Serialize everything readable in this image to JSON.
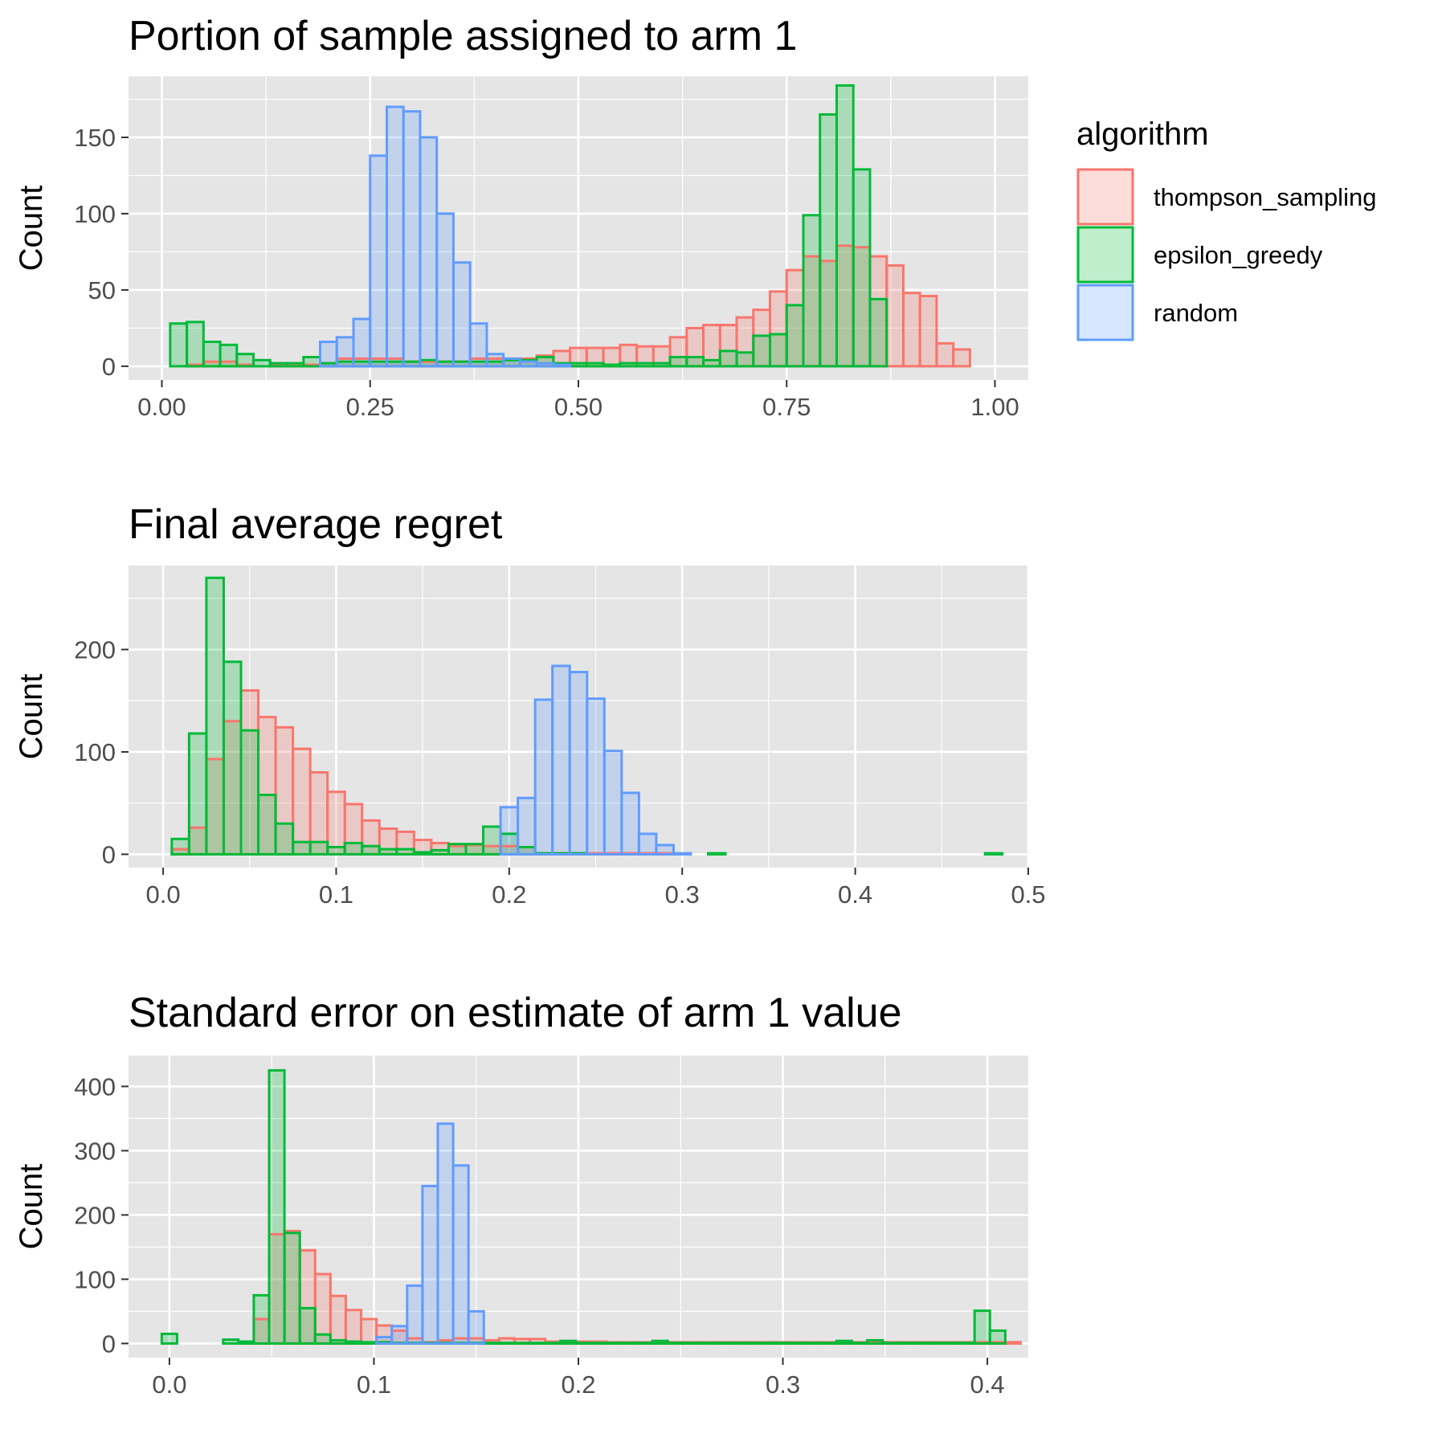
{
  "legend": {
    "title": "algorithm",
    "placement": "right",
    "items": [
      {
        "key": "thompson_sampling",
        "label": "thompson_sampling",
        "color": "#F8766D"
      },
      {
        "key": "epsilon_greedy",
        "label": "epsilon_greedy",
        "color": "#00BA38"
      },
      {
        "key": "random",
        "label": "random",
        "color": "#619CFF"
      }
    ]
  },
  "colors": {
    "panel_background": "#e5e5e5",
    "gridline": "#ffffff",
    "tick_text": "#4d4d4d"
  },
  "chart_data": [
    {
      "type": "bar",
      "subtype": "histogram",
      "title": "Portion of sample assigned to arm 1",
      "xlabel": "",
      "ylabel": "Count",
      "xlim": [
        -0.04,
        1.04
      ],
      "ylim": [
        -9,
        190
      ],
      "xticks": [
        0,
        0.25,
        0.5,
        0.75,
        1.0
      ],
      "xtick_labels": [
        "0.00",
        "0.25",
        "0.50",
        "0.75",
        "1.00"
      ],
      "yticks": [
        0,
        50,
        100,
        150
      ],
      "ytick_labels": [
        "0",
        "50",
        "100",
        "150"
      ],
      "grid": true,
      "bin_start": 0.01,
      "bin_width": 0.02,
      "series": [
        {
          "name": "thompson_sampling",
          "values": [
            0,
            1,
            3,
            3,
            1,
            0,
            1,
            1,
            1,
            2,
            5,
            5,
            5,
            5,
            3,
            3,
            3,
            3,
            5,
            5,
            5,
            5,
            7,
            10,
            12,
            12,
            12,
            14,
            13,
            13,
            19,
            25,
            27,
            27,
            32,
            37,
            49,
            63,
            72,
            69,
            79,
            78,
            72,
            66,
            48,
            46,
            15,
            11
          ]
        },
        {
          "name": "epsilon_greedy",
          "values": [
            28,
            29,
            16,
            14,
            8,
            4,
            2,
            2,
            6,
            2,
            3,
            3,
            3,
            3,
            3,
            4,
            3,
            3,
            3,
            3,
            4,
            4,
            6,
            2,
            2,
            2,
            1,
            2,
            2,
            2,
            6,
            6,
            4,
            10,
            9,
            20,
            21,
            40,
            99,
            165,
            184,
            129,
            44,
            0,
            0,
            0,
            0,
            0
          ]
        },
        {
          "name": "random",
          "values": [
            0,
            0,
            0,
            0,
            0,
            0,
            0,
            0,
            0,
            16,
            19,
            31,
            138,
            170,
            167,
            150,
            100,
            68,
            28,
            8,
            5,
            3,
            2,
            1,
            0,
            0,
            0,
            0,
            0,
            0,
            0,
            0,
            0,
            0,
            0,
            0,
            0,
            0,
            0,
            0,
            0,
            0,
            0,
            0,
            0,
            0,
            0,
            0
          ]
        }
      ]
    },
    {
      "type": "bar",
      "subtype": "histogram",
      "title": "Final average regret",
      "xlabel": "",
      "ylabel": "Count",
      "xlim": [
        -0.02,
        0.5
      ],
      "ylim": [
        -13,
        282
      ],
      "xticks": [
        0,
        0.1,
        0.2,
        0.3,
        0.4,
        0.5
      ],
      "xtick_labels": [
        "0.0",
        "0.1",
        "0.2",
        "0.3",
        "0.4",
        "0.5"
      ],
      "yticks": [
        0,
        100,
        200
      ],
      "ytick_labels": [
        "0",
        "100",
        "200"
      ],
      "grid": true,
      "bin_start": 0.005,
      "bin_width": 0.01,
      "series": [
        {
          "name": "thompson_sampling",
          "values": [
            5,
            26,
            93,
            130,
            160,
            134,
            124,
            103,
            80,
            61,
            49,
            33,
            25,
            22,
            14,
            11,
            8,
            9,
            8,
            8,
            7,
            1,
            1,
            1,
            1,
            1,
            1,
            1,
            1,
            0,
            0,
            0,
            0,
            0,
            0,
            0,
            0,
            0,
            0,
            0,
            0,
            0,
            0,
            0,
            0,
            0,
            0,
            0
          ]
        },
        {
          "name": "epsilon_greedy",
          "values": [
            15,
            118,
            270,
            188,
            121,
            58,
            30,
            12,
            12,
            7,
            11,
            8,
            5,
            5,
            2,
            4,
            10,
            10,
            27,
            20,
            7,
            1,
            1,
            1,
            0,
            0,
            0,
            0,
            0,
            0,
            0,
            1,
            0,
            0,
            0,
            0,
            0,
            0,
            0,
            0,
            0,
            0,
            0,
            0,
            0,
            0,
            0,
            1
          ]
        },
        {
          "name": "random",
          "values": [
            0,
            0,
            0,
            0,
            0,
            0,
            0,
            0,
            0,
            0,
            0,
            0,
            0,
            0,
            0,
            0,
            0,
            0,
            0,
            46,
            55,
            151,
            184,
            178,
            152,
            101,
            60,
            20,
            9,
            1,
            0,
            0,
            0,
            0,
            0,
            0,
            0,
            0,
            0,
            0,
            0,
            0,
            0,
            0,
            0,
            0,
            0,
            0
          ]
        }
      ]
    },
    {
      "type": "bar",
      "subtype": "histogram",
      "title": "Standard error on estimate of arm 1 value",
      "xlabel": "",
      "ylabel": "Count",
      "xlim": [
        -0.02,
        0.42
      ],
      "ylim": [
        -22,
        448
      ],
      "xticks": [
        0,
        0.1,
        0.2,
        0.3,
        0.4
      ],
      "xtick_labels": [
        "0.0",
        "0.1",
        "0.2",
        "0.3",
        "0.4"
      ],
      "yticks": [
        0,
        100,
        200,
        300,
        400
      ],
      "ytick_labels": [
        "0",
        "100",
        "200",
        "300",
        "400"
      ],
      "grid": true,
      "bin_start": -0.00375,
      "bin_width": 0.0075,
      "series": [
        {
          "name": "thompson_sampling",
          "values": [
            0,
            0,
            0,
            0,
            0,
            2,
            38,
            170,
            175,
            145,
            108,
            74,
            52,
            38,
            28,
            20,
            8,
            2,
            5,
            8,
            8,
            5,
            8,
            7,
            7,
            3,
            3,
            3,
            3,
            2,
            2,
            2,
            2,
            2,
            2,
            2,
            2,
            2,
            2,
            2,
            2,
            2,
            2,
            2,
            2,
            2,
            2,
            2,
            2,
            2,
            2,
            2,
            2,
            2,
            2,
            2,
            0
          ]
        },
        {
          "name": "epsilon_greedy",
          "values": [
            15,
            0,
            0,
            0,
            6,
            3,
            75,
            425,
            172,
            55,
            14,
            5,
            3,
            2,
            2,
            1,
            1,
            1,
            1,
            1,
            1,
            1,
            1,
            1,
            1,
            1,
            4,
            1,
            1,
            1,
            1,
            1,
            4,
            1,
            1,
            1,
            1,
            1,
            1,
            1,
            1,
            1,
            1,
            1,
            4,
            1,
            5,
            1,
            1,
            1,
            1,
            1,
            1,
            51,
            20,
            0,
            0
          ]
        },
        {
          "name": "random",
          "values": [
            0,
            0,
            0,
            0,
            0,
            0,
            0,
            0,
            0,
            0,
            0,
            0,
            0,
            0,
            10,
            27,
            90,
            245,
            342,
            277,
            50,
            0,
            0,
            0,
            0,
            0,
            0,
            0,
            0,
            0,
            0,
            0,
            0,
            0,
            0,
            0,
            0,
            0,
            0,
            0,
            0,
            0,
            0,
            0,
            0,
            0,
            0,
            0,
            0,
            0,
            0,
            0,
            0,
            0,
            0,
            0,
            0
          ]
        }
      ]
    }
  ]
}
